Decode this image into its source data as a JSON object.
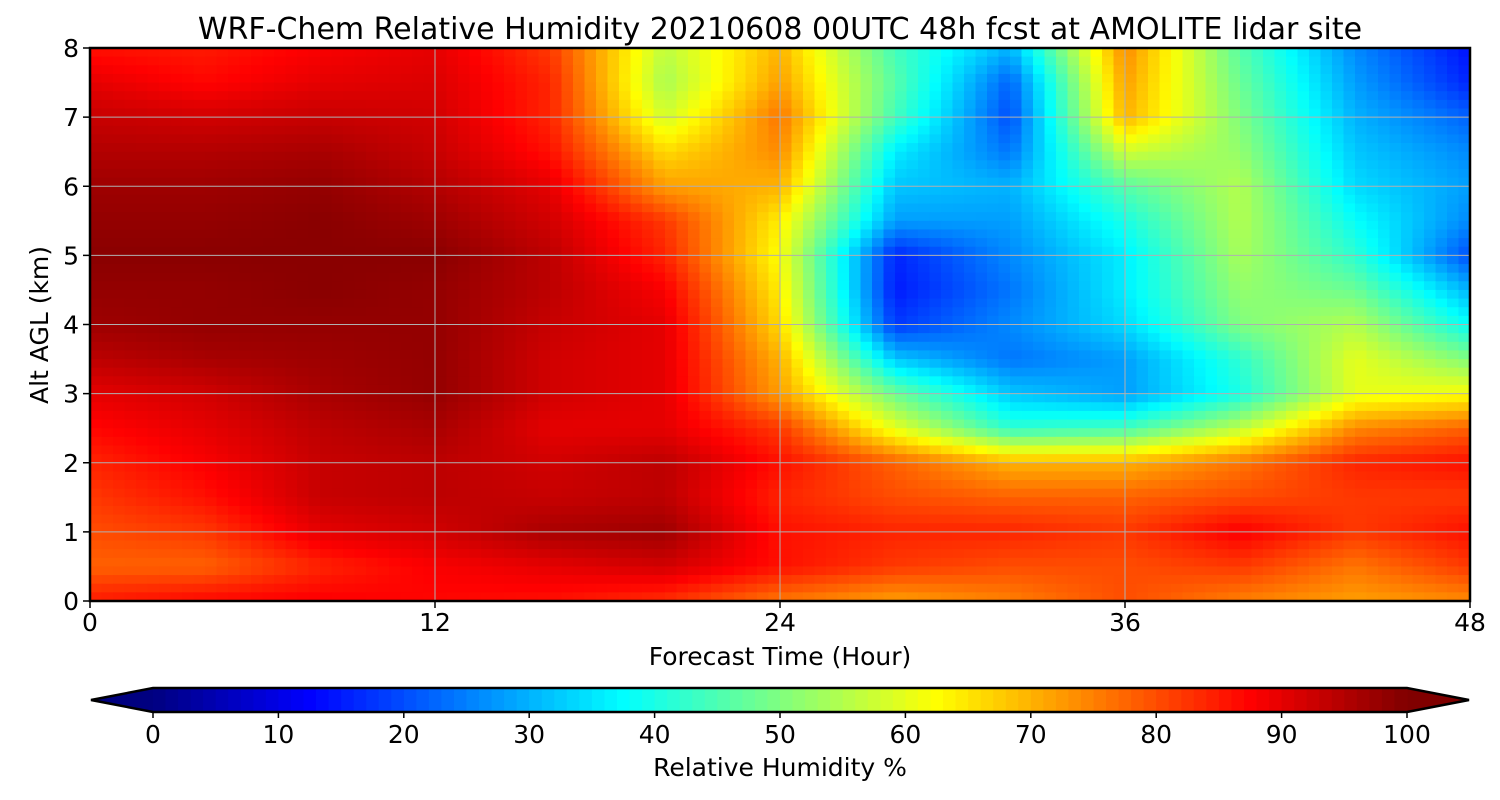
{
  "chart_data": {
    "type": "heatmap",
    "title": "WRF-Chem Relative Humidity 20210608 00UTC 48h fcst at AMOLITE lidar site",
    "xlabel": "Forecast Time (Hour)",
    "ylabel": "Alt AGL (km)",
    "xlim": [
      0,
      48
    ],
    "ylim": [
      0,
      8
    ],
    "x_ticks": [
      "0",
      "12",
      "24",
      "36",
      "48"
    ],
    "y_ticks": [
      "0",
      "1",
      "2",
      "3",
      "4",
      "5",
      "6",
      "7",
      "8"
    ],
    "grid": true,
    "colormap": "jet",
    "colorbar": {
      "label": "Relative Humidity %",
      "min": 0,
      "max": 100,
      "ticks": [
        "0",
        "10",
        "20",
        "30",
        "40",
        "50",
        "60",
        "70",
        "80",
        "90",
        "100"
      ],
      "extend": "both",
      "orientation": "horizontal"
    },
    "x": [
      0,
      4,
      8,
      12,
      16,
      20,
      24,
      28,
      32,
      36,
      40,
      44,
      48
    ],
    "y": [
      0,
      0.5,
      1,
      1.5,
      2,
      2.5,
      3,
      3.5,
      4,
      4.5,
      5,
      5.5,
      6,
      6.5,
      7,
      7.5,
      8
    ],
    "z": [
      [
        85,
        87,
        88,
        87,
        86,
        83,
        76,
        72,
        75,
        80,
        75,
        72,
        74
      ],
      [
        78,
        78,
        84,
        88,
        90,
        92,
        86,
        82,
        80,
        80,
        82,
        76,
        82
      ],
      [
        80,
        82,
        90,
        92,
        96,
        97,
        86,
        84,
        84,
        82,
        88,
        82,
        86
      ],
      [
        82,
        86,
        93,
        94,
        93,
        94,
        84,
        80,
        78,
        78,
        80,
        82,
        82
      ],
      [
        84,
        88,
        93,
        94,
        92,
        94,
        86,
        78,
        70,
        70,
        76,
        84,
        86
      ],
      [
        87,
        90,
        94,
        96,
        90,
        90,
        82,
        60,
        42,
        44,
        56,
        74,
        78
      ],
      [
        90,
        92,
        96,
        98,
        92,
        90,
        72,
        48,
        32,
        28,
        40,
        60,
        62
      ],
      [
        94,
        96,
        97,
        98,
        92,
        90,
        70,
        32,
        24,
        28,
        42,
        60,
        50
      ],
      [
        97,
        98,
        98,
        98,
        93,
        90,
        66,
        18,
        26,
        34,
        50,
        55,
        38
      ],
      [
        98,
        98,
        99,
        98,
        94,
        88,
        64,
        15,
        24,
        36,
        52,
        48,
        30
      ],
      [
        99,
        99,
        99,
        99,
        94,
        84,
        62,
        16,
        26,
        36,
        54,
        42,
        20
      ],
      [
        98,
        98,
        99,
        97,
        92,
        82,
        64,
        28,
        28,
        40,
        55,
        38,
        26
      ],
      [
        97,
        97,
        98,
        95,
        90,
        72,
        70,
        32,
        30,
        46,
        55,
        34,
        28
      ],
      [
        95,
        95,
        96,
        93,
        86,
        66,
        74,
        36,
        24,
        58,
        52,
        32,
        26
      ],
      [
        93,
        92,
        93,
        92,
        84,
        58,
        76,
        44,
        20,
        70,
        50,
        30,
        22
      ],
      [
        90,
        87,
        90,
        91,
        84,
        54,
        72,
        46,
        22,
        72,
        48,
        28,
        16
      ],
      [
        86,
        85,
        88,
        90,
        82,
        56,
        70,
        44,
        30,
        74,
        46,
        26,
        14
      ]
    ]
  }
}
